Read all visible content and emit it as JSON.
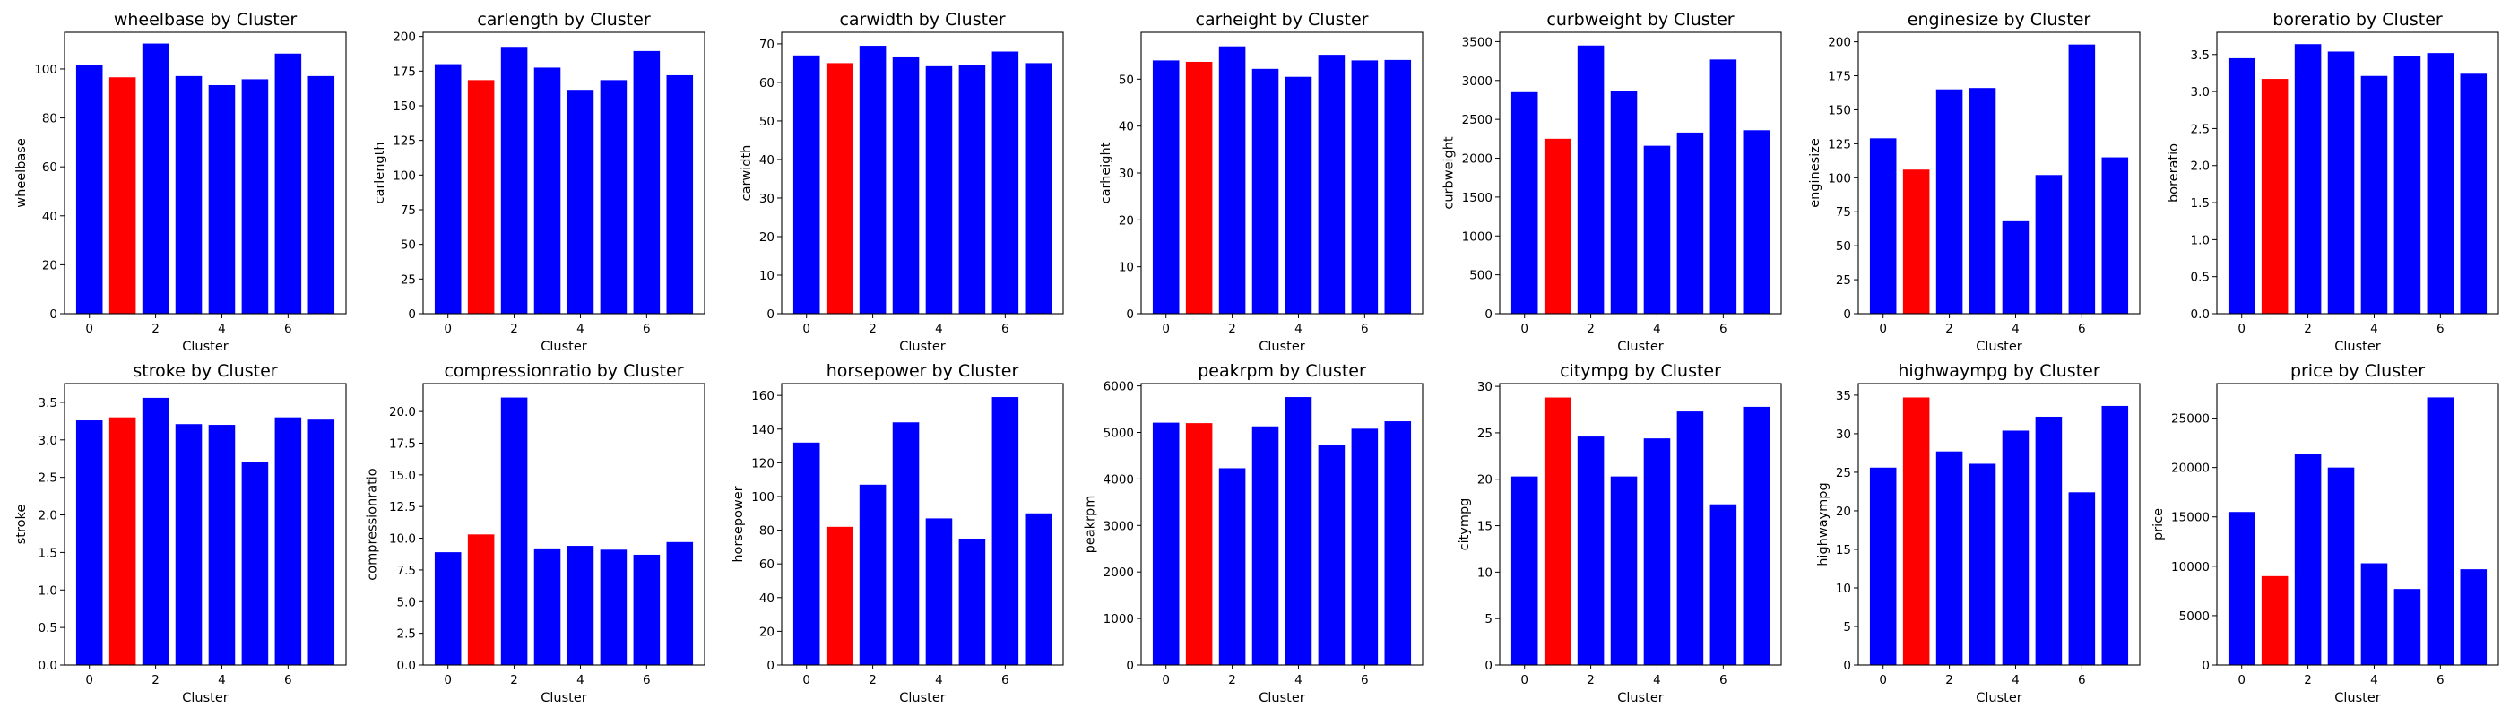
{
  "figure": {
    "colors": {
      "highlight": "#ff0000",
      "default": "#0000ff"
    }
  },
  "chart_data": [
    {
      "type": "bar",
      "title": "wheelbase by Cluster",
      "xlabel": "Cluster",
      "ylabel": "wheelbase",
      "categories": [
        0,
        1,
        2,
        3,
        4,
        5,
        6,
        7
      ],
      "values": [
        101.6,
        96.6,
        110.4,
        97.1,
        93.4,
        95.8,
        106.3,
        97.1
      ],
      "highlight_index": 1,
      "ylim": [
        0,
        115
      ],
      "yticks": [
        0,
        20,
        40,
        60,
        80,
        100
      ],
      "ytick_labels": [
        "0",
        "20",
        "40",
        "60",
        "80",
        "100"
      ],
      "xticks": [
        0,
        2,
        4,
        6
      ],
      "xtick_labels": [
        "0",
        "2",
        "4",
        "6"
      ]
    },
    {
      "type": "bar",
      "title": "carlength by Cluster",
      "xlabel": "Cluster",
      "ylabel": "carlength",
      "categories": [
        0,
        1,
        2,
        3,
        4,
        5,
        6,
        7
      ],
      "values": [
        180.0,
        168.5,
        192.5,
        177.5,
        161.5,
        168.5,
        189.5,
        172.0
      ],
      "highlight_index": 1,
      "ylim": [
        0,
        203
      ],
      "yticks": [
        0,
        25,
        50,
        75,
        100,
        125,
        150,
        175,
        200
      ],
      "ytick_labels": [
        "0",
        "25",
        "50",
        "75",
        "100",
        "125",
        "150",
        "175",
        "200"
      ],
      "xticks": [
        0,
        2,
        4,
        6
      ],
      "xtick_labels": [
        "0",
        "2",
        "4",
        "6"
      ]
    },
    {
      "type": "bar",
      "title": "carwidth by Cluster",
      "xlabel": "Cluster",
      "ylabel": "carwidth",
      "categories": [
        0,
        1,
        2,
        3,
        4,
        5,
        6,
        7
      ],
      "values": [
        67.0,
        65.0,
        69.5,
        66.5,
        64.2,
        64.4,
        68.0,
        65.0
      ],
      "highlight_index": 1,
      "ylim": [
        0,
        73
      ],
      "yticks": [
        0,
        10,
        20,
        30,
        40,
        50,
        60,
        70
      ],
      "ytick_labels": [
        "0",
        "10",
        "20",
        "30",
        "40",
        "50",
        "60",
        "70"
      ],
      "xticks": [
        0,
        2,
        4,
        6
      ],
      "xtick_labels": [
        "0",
        "2",
        "4",
        "6"
      ]
    },
    {
      "type": "bar",
      "title": "carheight by Cluster",
      "xlabel": "Cluster",
      "ylabel": "carheight",
      "categories": [
        0,
        1,
        2,
        3,
        4,
        5,
        6,
        7
      ],
      "values": [
        54.0,
        53.7,
        57.0,
        52.2,
        50.5,
        55.2,
        54.0,
        54.1
      ],
      "highlight_index": 1,
      "ylim": [
        0,
        60
      ],
      "yticks": [
        0,
        10,
        20,
        30,
        40,
        50
      ],
      "ytick_labels": [
        "0",
        "10",
        "20",
        "30",
        "40",
        "50"
      ],
      "xticks": [
        0,
        2,
        4,
        6
      ],
      "xtick_labels": [
        "0",
        "2",
        "4",
        "6"
      ]
    },
    {
      "type": "bar",
      "title": "curbweight by Cluster",
      "xlabel": "Cluster",
      "ylabel": "curbweight",
      "categories": [
        0,
        1,
        2,
        3,
        4,
        5,
        6,
        7
      ],
      "values": [
        2850,
        2250,
        3450,
        2870,
        2160,
        2330,
        3270,
        2360
      ],
      "highlight_index": 1,
      "ylim": [
        0,
        3620
      ],
      "yticks": [
        0,
        500,
        1000,
        1500,
        2000,
        2500,
        3000,
        3500
      ],
      "ytick_labels": [
        "0",
        "500",
        "1000",
        "1500",
        "2000",
        "2500",
        "3000",
        "3500"
      ],
      "xticks": [
        0,
        2,
        4,
        6
      ],
      "xtick_labels": [
        "0",
        "2",
        "4",
        "6"
      ]
    },
    {
      "type": "bar",
      "title": "enginesize by Cluster",
      "xlabel": "Cluster",
      "ylabel": "enginesize",
      "categories": [
        0,
        1,
        2,
        3,
        4,
        5,
        6,
        7
      ],
      "values": [
        129,
        106,
        165,
        166,
        68,
        102,
        198,
        115
      ],
      "highlight_index": 1,
      "ylim": [
        0,
        207
      ],
      "yticks": [
        0,
        25,
        50,
        75,
        100,
        125,
        150,
        175,
        200
      ],
      "ytick_labels": [
        "0",
        "25",
        "50",
        "75",
        "100",
        "125",
        "150",
        "175",
        "200"
      ],
      "xticks": [
        0,
        2,
        4,
        6
      ],
      "xtick_labels": [
        "0",
        "2",
        "4",
        "6"
      ]
    },
    {
      "type": "bar",
      "title": "boreratio by Cluster",
      "xlabel": "Cluster",
      "ylabel": "boreratio",
      "categories": [
        0,
        1,
        2,
        3,
        4,
        5,
        6,
        7
      ],
      "values": [
        3.45,
        3.17,
        3.64,
        3.54,
        3.21,
        3.48,
        3.52,
        3.24
      ],
      "highlight_index": 1,
      "ylim": [
        0,
        3.8
      ],
      "yticks": [
        0,
        0.5,
        1.0,
        1.5,
        2.0,
        2.5,
        3.0,
        3.5
      ],
      "ytick_labels": [
        "0.0",
        "0.5",
        "1.0",
        "1.5",
        "2.0",
        "2.5",
        "3.0",
        "3.5"
      ],
      "xticks": [
        0,
        2,
        4,
        6
      ],
      "xtick_labels": [
        "0",
        "2",
        "4",
        "6"
      ]
    },
    {
      "type": "bar",
      "title": "stroke by Cluster",
      "xlabel": "Cluster",
      "ylabel": "stroke",
      "categories": [
        0,
        1,
        2,
        3,
        4,
        5,
        6,
        7
      ],
      "values": [
        3.26,
        3.3,
        3.56,
        3.21,
        3.2,
        2.71,
        3.3,
        3.27
      ],
      "highlight_index": 1,
      "ylim": [
        0,
        3.75
      ],
      "yticks": [
        0,
        0.5,
        1.0,
        1.5,
        2.0,
        2.5,
        3.0,
        3.5
      ],
      "ytick_labels": [
        "0.0",
        "0.5",
        "1.0",
        "1.5",
        "2.0",
        "2.5",
        "3.0",
        "3.5"
      ],
      "xticks": [
        0,
        2,
        4,
        6
      ],
      "xtick_labels": [
        "0",
        "2",
        "4",
        "6"
      ]
    },
    {
      "type": "bar",
      "title": "compressionratio by Cluster",
      "xlabel": "Cluster",
      "ylabel": "compressionratio",
      "categories": [
        0,
        1,
        2,
        3,
        4,
        5,
        6,
        7
      ],
      "values": [
        8.9,
        10.3,
        21.1,
        9.2,
        9.4,
        9.1,
        8.7,
        9.7
      ],
      "highlight_index": 1,
      "ylim": [
        0,
        22.2
      ],
      "yticks": [
        0,
        2.5,
        5.0,
        7.5,
        10.0,
        12.5,
        15.0,
        17.5,
        20.0
      ],
      "ytick_labels": [
        "0.0",
        "2.5",
        "5.0",
        "7.5",
        "10.0",
        "12.5",
        "15.0",
        "17.5",
        "20.0"
      ],
      "xticks": [
        0,
        2,
        4,
        6
      ],
      "xtick_labels": [
        "0",
        "2",
        "4",
        "6"
      ]
    },
    {
      "type": "bar",
      "title": "horsepower by Cluster",
      "xlabel": "Cluster",
      "ylabel": "horsepower",
      "categories": [
        0,
        1,
        2,
        3,
        4,
        5,
        6,
        7
      ],
      "values": [
        132,
        82,
        107,
        144,
        87,
        75,
        159,
        90
      ],
      "highlight_index": 1,
      "ylim": [
        0,
        167
      ],
      "yticks": [
        0,
        20,
        40,
        60,
        80,
        100,
        120,
        140,
        160
      ],
      "ytick_labels": [
        "0",
        "20",
        "40",
        "60",
        "80",
        "100",
        "120",
        "140",
        "160"
      ],
      "xticks": [
        0,
        2,
        4,
        6
      ],
      "xtick_labels": [
        "0",
        "2",
        "4",
        "6"
      ]
    },
    {
      "type": "bar",
      "title": "peakrpm by Cluster",
      "xlabel": "Cluster",
      "ylabel": "peakrpm",
      "categories": [
        0,
        1,
        2,
        3,
        4,
        5,
        6,
        7
      ],
      "values": [
        5210,
        5200,
        4230,
        5130,
        5760,
        4740,
        5080,
        5240
      ],
      "highlight_index": 1,
      "ylim": [
        0,
        6050
      ],
      "yticks": [
        0,
        1000,
        2000,
        3000,
        4000,
        5000,
        6000
      ],
      "ytick_labels": [
        "0",
        "1000",
        "2000",
        "3000",
        "4000",
        "5000",
        "6000"
      ],
      "xticks": [
        0,
        2,
        4,
        6
      ],
      "xtick_labels": [
        "0",
        "2",
        "4",
        "6"
      ]
    },
    {
      "type": "bar",
      "title": "citympg by Cluster",
      "xlabel": "Cluster",
      "ylabel": "citympg",
      "categories": [
        0,
        1,
        2,
        3,
        4,
        5,
        6,
        7
      ],
      "values": [
        20.3,
        28.8,
        24.6,
        20.3,
        24.4,
        27.3,
        17.3,
        27.8
      ],
      "highlight_index": 1,
      "ylim": [
        0,
        30.3
      ],
      "yticks": [
        0,
        5,
        10,
        15,
        20,
        25,
        30
      ],
      "ytick_labels": [
        "0",
        "5",
        "10",
        "15",
        "20",
        "25",
        "30"
      ],
      "xticks": [
        0,
        2,
        4,
        6
      ],
      "xtick_labels": [
        "0",
        "2",
        "4",
        "6"
      ]
    },
    {
      "type": "bar",
      "title": "highwaympg by Cluster",
      "xlabel": "Cluster",
      "ylabel": "highwaympg",
      "categories": [
        0,
        1,
        2,
        3,
        4,
        5,
        6,
        7
      ],
      "values": [
        25.6,
        34.7,
        27.7,
        26.1,
        30.4,
        32.2,
        22.4,
        33.6
      ],
      "highlight_index": 1,
      "ylim": [
        0,
        36.5
      ],
      "yticks": [
        0,
        5,
        10,
        15,
        20,
        25,
        30,
        35
      ],
      "ytick_labels": [
        "0",
        "5",
        "10",
        "15",
        "20",
        "25",
        "30",
        "35"
      ],
      "xticks": [
        0,
        2,
        4,
        6
      ],
      "xtick_labels": [
        "0",
        "2",
        "4",
        "6"
      ]
    },
    {
      "type": "bar",
      "title": "price by Cluster",
      "xlabel": "Cluster",
      "ylabel": "price",
      "categories": [
        0,
        1,
        2,
        3,
        4,
        5,
        6,
        7
      ],
      "values": [
        15500,
        9000,
        21400,
        20000,
        10300,
        7700,
        27100,
        9700
      ],
      "highlight_index": 1,
      "ylim": [
        0,
        28500
      ],
      "yticks": [
        0,
        5000,
        10000,
        15000,
        20000,
        25000
      ],
      "ytick_labels": [
        "0",
        "5000",
        "10000",
        "15000",
        "20000",
        "25000"
      ],
      "xticks": [
        0,
        2,
        4,
        6
      ],
      "xtick_labels": [
        "0",
        "2",
        "4",
        "6"
      ]
    }
  ]
}
